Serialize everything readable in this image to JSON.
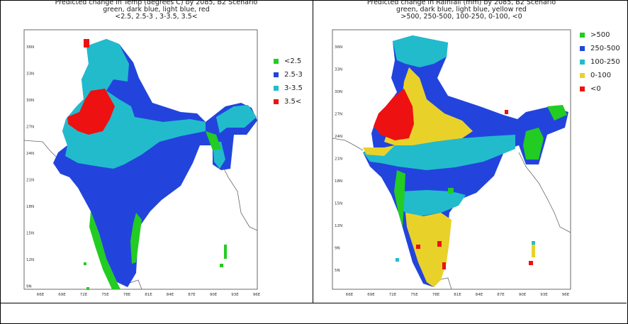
{
  "colors": {
    "green": "#22cc22",
    "dark_blue": "#2244dd",
    "light_blue": "#22bbcc",
    "red": "#ee1111",
    "yellow": "#e8d22a"
  },
  "left": {
    "title_lines": [
      "Predicted change in Temp (degrees C) by 2085, B2 Scenario",
      "green, dark blue, light blue, red",
      "<2.5, 2.5-3 , 3-3.5, 3.5<"
    ],
    "legend": [
      {
        "label": "<2.5",
        "color": "#22cc22"
      },
      {
        "label": "2.5-3",
        "color": "#2244dd"
      },
      {
        "label": "3-3.5",
        "color": "#22bbcc"
      },
      {
        "label": "3.5<",
        "color": "#ee1111"
      }
    ],
    "y_ticks": [
      "36N",
      "33N",
      "30N",
      "27N",
      "24N",
      "21N",
      "18N",
      "15N",
      "12N",
      "9N"
    ],
    "x_ticks": [
      "66E",
      "69E",
      "72E",
      "75E",
      "78E",
      "81E",
      "84E",
      "87E",
      "90E",
      "93E",
      "96E"
    ]
  },
  "right": {
    "title_lines": [
      "Predicted change in Rainfall (mm) by 2085, B2 Scenario",
      "green, dark blue, light blue, yellow red",
      ">500, 250-500, 100-250, 0-100, <0"
    ],
    "legend": [
      {
        "label": ">500",
        "color": "#22cc22"
      },
      {
        "label": "250-500",
        "color": "#2244dd"
      },
      {
        "label": "100-250",
        "color": "#22bbcc"
      },
      {
        "label": "0-100",
        "color": "#e8d22a"
      },
      {
        "label": "<0",
        "color": "#ee1111"
      }
    ],
    "y_ticks": [
      "36N",
      "33N",
      "30N",
      "27N",
      "24N",
      "21N",
      "18N",
      "15N",
      "12N",
      "9N",
      "5N"
    ],
    "x_ticks": [
      "66E",
      "69E",
      "72E",
      "75E",
      "78E",
      "81E",
      "84E",
      "87E",
      "90E",
      "93E",
      "96E"
    ]
  }
}
